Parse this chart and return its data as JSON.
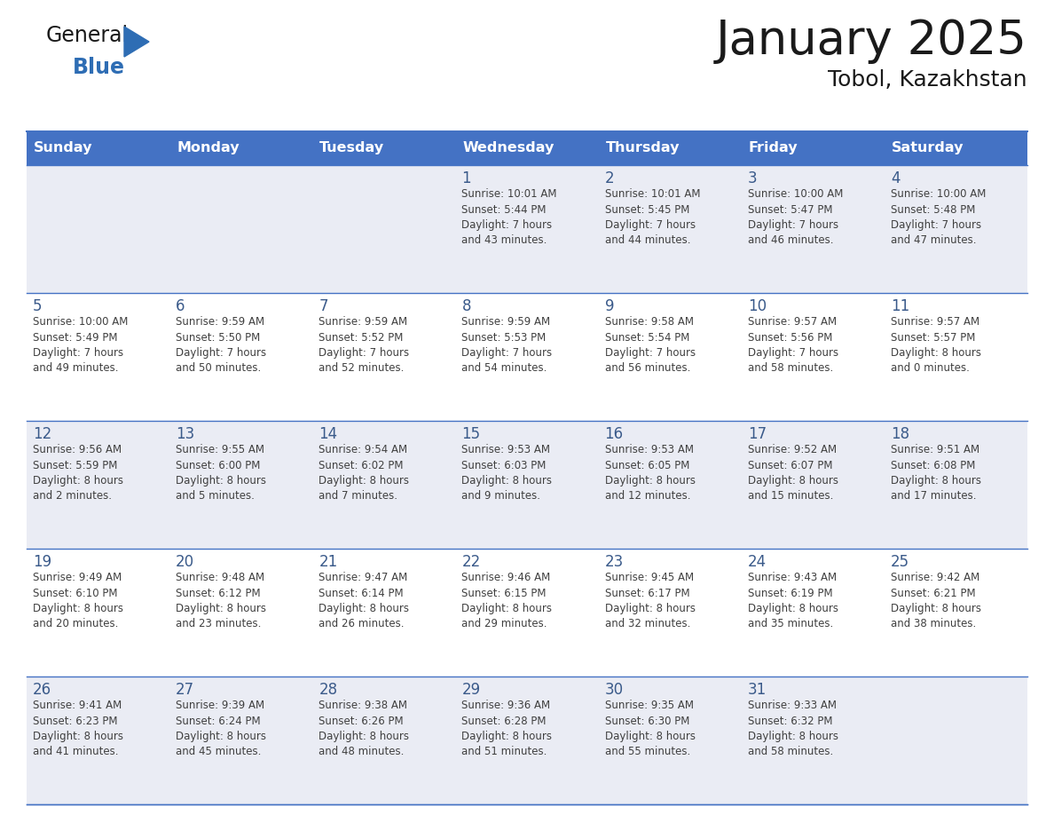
{
  "title": "January 2025",
  "subtitle": "Tobol, Kazakhstan",
  "days_of_week": [
    "Sunday",
    "Monday",
    "Tuesday",
    "Wednesday",
    "Thursday",
    "Friday",
    "Saturday"
  ],
  "header_bg": "#4472C4",
  "header_text": "#FFFFFF",
  "cell_bg_light": "#EAECF4",
  "cell_bg_white": "#FFFFFF",
  "grid_color": "#4472C4",
  "day_number_color": "#3A5A8A",
  "info_text_color": "#404040",
  "title_color": "#1a1a1a",
  "logo_general_color": "#1a1a1a",
  "logo_blue_color": "#2E6DB4",
  "weeks": [
    [
      {
        "day": 0,
        "text": ""
      },
      {
        "day": 0,
        "text": ""
      },
      {
        "day": 0,
        "text": ""
      },
      {
        "day": 1,
        "text": "Sunrise: 10:01 AM\nSunset: 5:44 PM\nDaylight: 7 hours\nand 43 minutes."
      },
      {
        "day": 2,
        "text": "Sunrise: 10:01 AM\nSunset: 5:45 PM\nDaylight: 7 hours\nand 44 minutes."
      },
      {
        "day": 3,
        "text": "Sunrise: 10:00 AM\nSunset: 5:47 PM\nDaylight: 7 hours\nand 46 minutes."
      },
      {
        "day": 4,
        "text": "Sunrise: 10:00 AM\nSunset: 5:48 PM\nDaylight: 7 hours\nand 47 minutes."
      }
    ],
    [
      {
        "day": 5,
        "text": "Sunrise: 10:00 AM\nSunset: 5:49 PM\nDaylight: 7 hours\nand 49 minutes."
      },
      {
        "day": 6,
        "text": "Sunrise: 9:59 AM\nSunset: 5:50 PM\nDaylight: 7 hours\nand 50 minutes."
      },
      {
        "day": 7,
        "text": "Sunrise: 9:59 AM\nSunset: 5:52 PM\nDaylight: 7 hours\nand 52 minutes."
      },
      {
        "day": 8,
        "text": "Sunrise: 9:59 AM\nSunset: 5:53 PM\nDaylight: 7 hours\nand 54 minutes."
      },
      {
        "day": 9,
        "text": "Sunrise: 9:58 AM\nSunset: 5:54 PM\nDaylight: 7 hours\nand 56 minutes."
      },
      {
        "day": 10,
        "text": "Sunrise: 9:57 AM\nSunset: 5:56 PM\nDaylight: 7 hours\nand 58 minutes."
      },
      {
        "day": 11,
        "text": "Sunrise: 9:57 AM\nSunset: 5:57 PM\nDaylight: 8 hours\nand 0 minutes."
      }
    ],
    [
      {
        "day": 12,
        "text": "Sunrise: 9:56 AM\nSunset: 5:59 PM\nDaylight: 8 hours\nand 2 minutes."
      },
      {
        "day": 13,
        "text": "Sunrise: 9:55 AM\nSunset: 6:00 PM\nDaylight: 8 hours\nand 5 minutes."
      },
      {
        "day": 14,
        "text": "Sunrise: 9:54 AM\nSunset: 6:02 PM\nDaylight: 8 hours\nand 7 minutes."
      },
      {
        "day": 15,
        "text": "Sunrise: 9:53 AM\nSunset: 6:03 PM\nDaylight: 8 hours\nand 9 minutes."
      },
      {
        "day": 16,
        "text": "Sunrise: 9:53 AM\nSunset: 6:05 PM\nDaylight: 8 hours\nand 12 minutes."
      },
      {
        "day": 17,
        "text": "Sunrise: 9:52 AM\nSunset: 6:07 PM\nDaylight: 8 hours\nand 15 minutes."
      },
      {
        "day": 18,
        "text": "Sunrise: 9:51 AM\nSunset: 6:08 PM\nDaylight: 8 hours\nand 17 minutes."
      }
    ],
    [
      {
        "day": 19,
        "text": "Sunrise: 9:49 AM\nSunset: 6:10 PM\nDaylight: 8 hours\nand 20 minutes."
      },
      {
        "day": 20,
        "text": "Sunrise: 9:48 AM\nSunset: 6:12 PM\nDaylight: 8 hours\nand 23 minutes."
      },
      {
        "day": 21,
        "text": "Sunrise: 9:47 AM\nSunset: 6:14 PM\nDaylight: 8 hours\nand 26 minutes."
      },
      {
        "day": 22,
        "text": "Sunrise: 9:46 AM\nSunset: 6:15 PM\nDaylight: 8 hours\nand 29 minutes."
      },
      {
        "day": 23,
        "text": "Sunrise: 9:45 AM\nSunset: 6:17 PM\nDaylight: 8 hours\nand 32 minutes."
      },
      {
        "day": 24,
        "text": "Sunrise: 9:43 AM\nSunset: 6:19 PM\nDaylight: 8 hours\nand 35 minutes."
      },
      {
        "day": 25,
        "text": "Sunrise: 9:42 AM\nSunset: 6:21 PM\nDaylight: 8 hours\nand 38 minutes."
      }
    ],
    [
      {
        "day": 26,
        "text": "Sunrise: 9:41 AM\nSunset: 6:23 PM\nDaylight: 8 hours\nand 41 minutes."
      },
      {
        "day": 27,
        "text": "Sunrise: 9:39 AM\nSunset: 6:24 PM\nDaylight: 8 hours\nand 45 minutes."
      },
      {
        "day": 28,
        "text": "Sunrise: 9:38 AM\nSunset: 6:26 PM\nDaylight: 8 hours\nand 48 minutes."
      },
      {
        "day": 29,
        "text": "Sunrise: 9:36 AM\nSunset: 6:28 PM\nDaylight: 8 hours\nand 51 minutes."
      },
      {
        "day": 30,
        "text": "Sunrise: 9:35 AM\nSunset: 6:30 PM\nDaylight: 8 hours\nand 55 minutes."
      },
      {
        "day": 31,
        "text": "Sunrise: 9:33 AM\nSunset: 6:32 PM\nDaylight: 8 hours\nand 58 minutes."
      },
      {
        "day": 0,
        "text": ""
      }
    ]
  ]
}
